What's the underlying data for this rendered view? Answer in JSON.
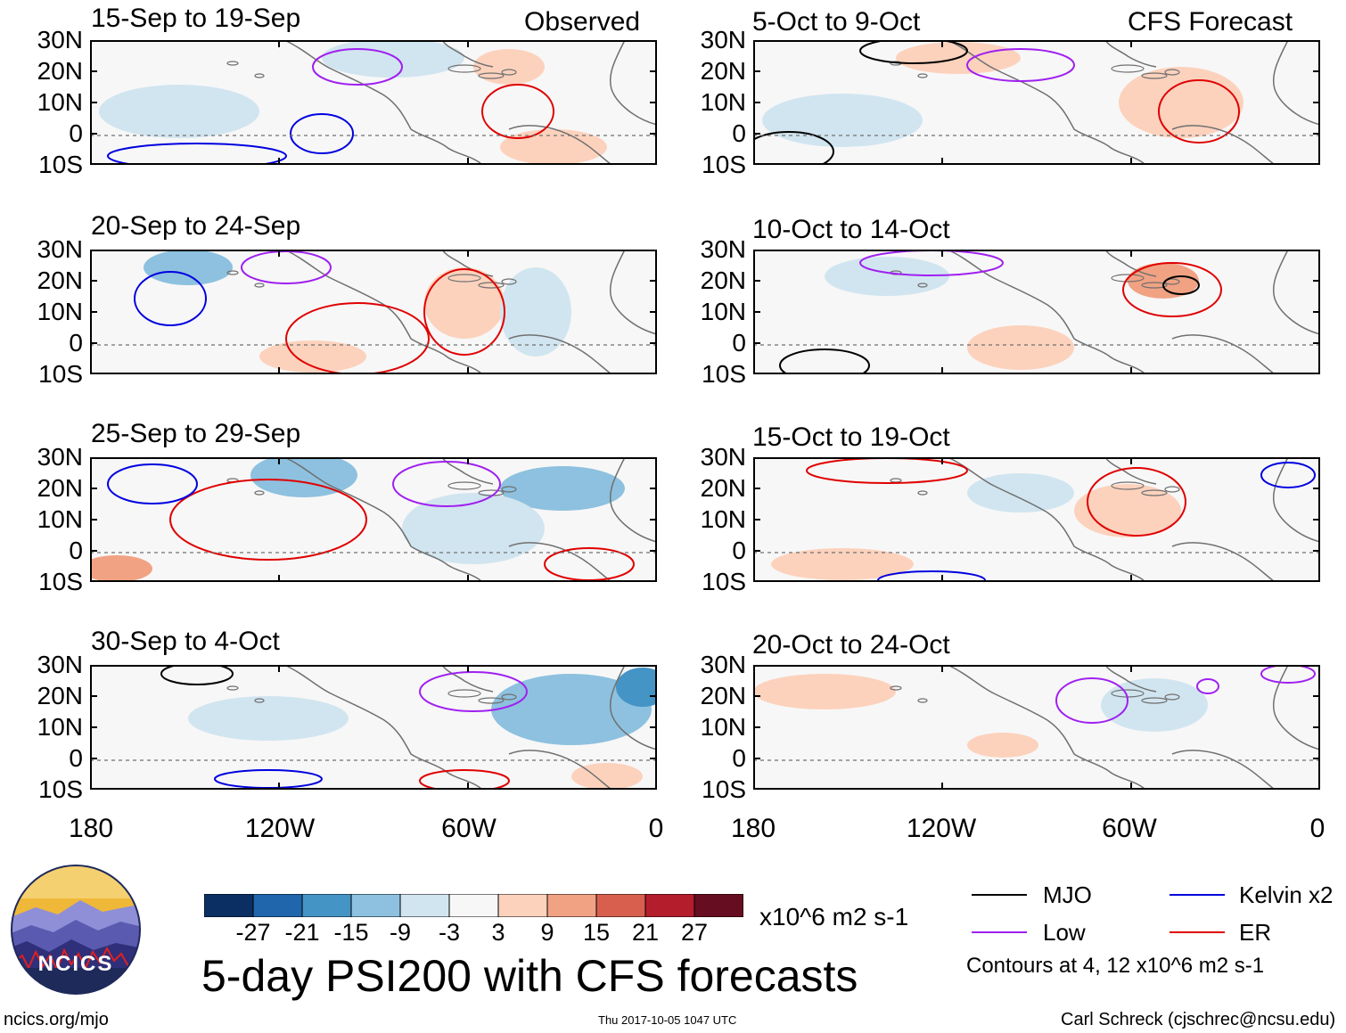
{
  "chart_data": {
    "type": "heatmap",
    "title": "5-day PSI200 with CFS forecasts",
    "variable": "PSI200 anomaly",
    "units": "x10^6 m2 s-1",
    "columns": [
      "Observed",
      "CFS Forecast"
    ],
    "lat_labels": [
      "30N",
      "20N",
      "10N",
      "0",
      "10S"
    ],
    "lon_labels": [
      "180",
      "120W",
      "60W",
      "0"
    ],
    "lat_range": [
      -10,
      30
    ],
    "lon_range": [
      -180,
      0
    ],
    "panels": [
      {
        "period": "15-Sep to 19-Sep",
        "column": "Observed",
        "label": "Observed"
      },
      {
        "period": "20-Sep to 24-Sep",
        "column": "Observed"
      },
      {
        "period": "25-Sep to 29-Sep",
        "column": "Observed"
      },
      {
        "period": "30-Sep to 4-Oct",
        "column": "Observed"
      },
      {
        "period": "5-Oct to 9-Oct",
        "column": "CFS Forecast",
        "label": "CFS Forecast"
      },
      {
        "period": "10-Oct to 14-Oct",
        "column": "CFS Forecast"
      },
      {
        "period": "15-Oct to 19-Oct",
        "column": "CFS Forecast"
      },
      {
        "period": "20-Oct to 24-Oct",
        "column": "CFS Forecast"
      }
    ],
    "colorbar": {
      "ticks": [
        "-27",
        "-21",
        "-15",
        "-9",
        "-3",
        "3",
        "9",
        "15",
        "21",
        "27"
      ],
      "colors": [
        "#0b2f63",
        "#1f66ad",
        "#4594c6",
        "#8dc1df",
        "#d1e5f0",
        "#f7f7f7",
        "#fcd2bd",
        "#f1a283",
        "#d85f4e",
        "#b31d2c",
        "#670d21"
      ]
    },
    "legend": [
      {
        "label": "MJO",
        "color": "#000000"
      },
      {
        "label": "Kelvin x2",
        "color": "#0000e0"
      },
      {
        "label": "Low",
        "color": "#a020f0"
      },
      {
        "label": "ER",
        "color": "#e00000"
      }
    ],
    "contour_note": "Contours at 4, 12 x10^6 m2 s-1"
  },
  "footer": {
    "logo_text": "NCICS",
    "url": "ncics.org/mjo",
    "timestamp": "Thu 2017-10-05 1047 UTC",
    "credit": "Carl Schreck (cjschrec@ncsu.edu)"
  }
}
